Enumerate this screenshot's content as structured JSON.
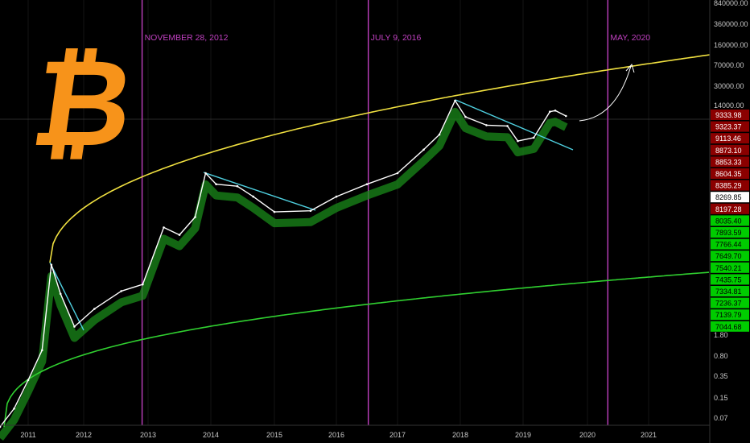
{
  "chart_data": {
    "type": "line",
    "asset": "Bitcoin",
    "scale": "log",
    "x_ticks": [
      "2011",
      "2012",
      "2013",
      "2014",
      "2015",
      "2016",
      "2017",
      "2018",
      "2019",
      "2020",
      "2021"
    ],
    "y_ticks": [
      "840000.00",
      "360000.00",
      "160000.00",
      "70000.00",
      "30000.00",
      "14000.00",
      "1.80",
      "0.80",
      "0.35",
      "0.15",
      "0.07"
    ],
    "halvings": [
      {
        "label": "NOVEMBER 28, 2012",
        "date": "2012-11-28"
      },
      {
        "label": "JULY 9, 2016",
        "date": "2016-07-09"
      },
      {
        "label": "MAY, 2020",
        "date": "2020-05"
      }
    ],
    "price_series": {
      "name": "",
      "points": [
        {
          "date": "2010-07",
          "price": 0.05
        },
        {
          "date": "2010-10",
          "price": 0.1
        },
        {
          "date": "2011-01",
          "price": 0.3
        },
        {
          "date": "2011-04",
          "price": 1
        },
        {
          "date": "2011-06",
          "price": 28
        },
        {
          "date": "2011-08",
          "price": 9
        },
        {
          "date": "2011-11",
          "price": 2.5
        },
        {
          "date": "2012-03",
          "price": 5
        },
        {
          "date": "2012-08",
          "price": 10
        },
        {
          "date": "2012-12",
          "price": 13
        },
        {
          "date": "2013-04",
          "price": 120
        },
        {
          "date": "2013-07",
          "price": 90
        },
        {
          "date": "2013-10",
          "price": 180
        },
        {
          "date": "2013-12",
          "price": 1000
        },
        {
          "date": "2014-02",
          "price": 650
        },
        {
          "date": "2014-06",
          "price": 600
        },
        {
          "date": "2014-09",
          "price": 400
        },
        {
          "date": "2015-01",
          "price": 220
        },
        {
          "date": "2015-08",
          "price": 230
        },
        {
          "date": "2016-01",
          "price": 400
        },
        {
          "date": "2016-07",
          "price": 650
        },
        {
          "date": "2017-01",
          "price": 1000
        },
        {
          "date": "2017-06",
          "price": 2500
        },
        {
          "date": "2017-09",
          "price": 4500
        },
        {
          "date": "2017-12",
          "price": 17000
        },
        {
          "date": "2018-02",
          "price": 9000
        },
        {
          "date": "2018-06",
          "price": 6500
        },
        {
          "date": "2018-10",
          "price": 6300
        },
        {
          "date": "2018-12",
          "price": 3500
        },
        {
          "date": "2019-03",
          "price": 4000
        },
        {
          "date": "2019-06",
          "price": 11000
        },
        {
          "date": "2019-07",
          "price": 11500
        },
        {
          "date": "2019-09",
          "price": 9300
        }
      ]
    },
    "price_scale_tags": [
      {
        "label": "9333.98",
        "color": "#8b0000"
      },
      {
        "label": "9323.37",
        "color": "#8b0000"
      },
      {
        "label": "9113.46",
        "color": "#8b0000"
      },
      {
        "label": "8873.10",
        "color": "#8b0000"
      },
      {
        "label": "8853.33",
        "color": "#8b0000"
      },
      {
        "label": "8604.35",
        "color": "#8b0000"
      },
      {
        "label": "8385.29",
        "color": "#8b0000"
      },
      {
        "label": "8269.85",
        "color": "#ffffff"
      },
      {
        "label": "8197.28",
        "color": "#8b0000"
      },
      {
        "label": "8035.40",
        "color": "#00cc00"
      },
      {
        "label": "7893.59",
        "color": "#00cc00"
      },
      {
        "label": "7766.44",
        "color": "#00cc00"
      },
      {
        "label": "7649.70",
        "color": "#00cc00"
      },
      {
        "label": "7540.21",
        "color": "#00cc00"
      },
      {
        "label": "7435.75",
        "color": "#00cc00"
      },
      {
        "label": "7334.81",
        "color": "#00cc00"
      },
      {
        "label": "7236.37",
        "color": "#00cc00"
      },
      {
        "label": "7139.79",
        "color": "#00cc00"
      },
      {
        "label": "7044.68",
        "color": "#00cc00"
      }
    ],
    "colors": {
      "background": "#000000",
      "halving_line": "#c040c0",
      "upper_curve": "#f0e040",
      "lower_curve": "#30d030",
      "trendline": "#4fd0e0",
      "ribbon": "#1a8a1a",
      "price": "#ffffff",
      "logo": "#f7931a"
    },
    "logo_symbol": "₿"
  }
}
